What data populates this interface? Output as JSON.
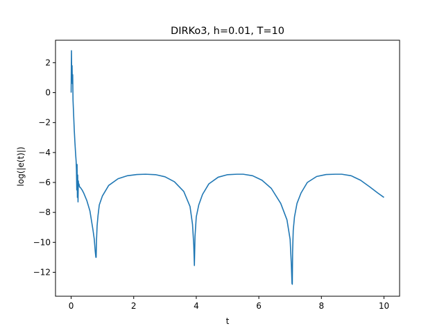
{
  "chart_data": {
    "type": "line",
    "title": "DIRKo3, h=0.01, T=10",
    "xlabel": "t",
    "ylabel": "log(|e(t)|)",
    "xlim": [
      -0.5,
      10.5
    ],
    "ylim": [
      -13.6,
      3.5
    ],
    "xticks": [
      0,
      2,
      4,
      6,
      8,
      10
    ],
    "xtick_labels": [
      "0",
      "2",
      "4",
      "6",
      "8",
      "10"
    ],
    "yticks": [
      2,
      0,
      -2,
      -4,
      -6,
      -8,
      -10,
      -12
    ],
    "ytick_labels": [
      "2",
      "0",
      "−2",
      "−4",
      "−6",
      "−8",
      "−10",
      "−12"
    ],
    "grid": false,
    "legend": "none",
    "series": [
      {
        "color": "#1f77b4",
        "x": [
          0.0,
          0.01,
          0.02,
          0.03,
          0.04,
          0.05,
          0.06,
          0.08,
          0.1,
          0.12,
          0.14,
          0.16,
          0.17,
          0.18,
          0.19,
          0.2,
          0.21,
          0.22,
          0.23,
          0.24,
          0.25,
          0.27,
          0.3,
          0.35,
          0.4,
          0.5,
          0.6,
          0.7,
          0.74,
          0.77,
          0.79,
          0.8,
          0.81,
          0.83,
          0.86,
          0.9,
          1.0,
          1.2,
          1.5,
          1.8,
          2.1,
          2.38,
          2.7,
          3.0,
          3.3,
          3.6,
          3.8,
          3.88,
          3.92,
          3.94,
          3.96,
          4.0,
          4.08,
          4.2,
          4.4,
          4.7,
          5.0,
          5.3,
          5.5,
          5.8,
          6.1,
          6.4,
          6.7,
          6.9,
          7.0,
          7.04,
          7.06,
          7.07,
          7.08,
          7.1,
          7.14,
          7.22,
          7.35,
          7.55,
          7.85,
          8.15,
          8.45,
          8.65,
          8.95,
          9.25,
          9.55,
          9.8,
          10.0
        ],
        "y": [
          0.0,
          2.8,
          1.0,
          1.8,
          0.6,
          1.2,
          -0.5,
          -1.5,
          -2.5,
          -3.3,
          -4.0,
          -4.6,
          -5.2,
          -6.5,
          -4.8,
          -7.0,
          -5.5,
          -7.3,
          -5.9,
          -6.2,
          -6.1,
          -6.3,
          -6.35,
          -6.5,
          -6.7,
          -7.2,
          -7.9,
          -9.2,
          -9.8,
          -10.6,
          -11.0,
          -11.0,
          -9.9,
          -8.9,
          -8.2,
          -7.5,
          -6.9,
          -6.2,
          -5.75,
          -5.55,
          -5.47,
          -5.45,
          -5.48,
          -5.62,
          -5.95,
          -6.6,
          -7.6,
          -8.8,
          -10.2,
          -11.55,
          -9.6,
          -8.3,
          -7.5,
          -6.8,
          -6.1,
          -5.65,
          -5.48,
          -5.45,
          -5.45,
          -5.55,
          -5.85,
          -6.4,
          -7.4,
          -8.5,
          -9.8,
          -11.5,
          -12.75,
          -12.8,
          -10.6,
          -9.2,
          -8.3,
          -7.4,
          -6.7,
          -6.0,
          -5.6,
          -5.47,
          -5.45,
          -5.45,
          -5.55,
          -5.85,
          -6.3,
          -6.7,
          -7.0
        ]
      }
    ]
  }
}
